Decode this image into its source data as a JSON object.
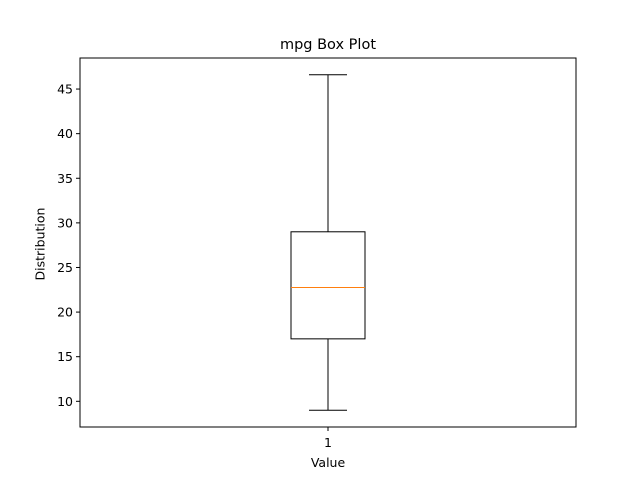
{
  "chart_data": {
    "type": "box",
    "title": "mpg Box Plot",
    "xlabel": "Value",
    "ylabel": "Distribution",
    "categories": [
      "1"
    ],
    "boxes": [
      {
        "category": "1",
        "whisker_low": 9.0,
        "q1": 17.0,
        "median": 22.75,
        "q3": 29.0,
        "whisker_high": 46.6
      }
    ],
    "ylim": [
      7.12,
      48.48
    ],
    "yticks": [
      10,
      15,
      20,
      25,
      30,
      35,
      40,
      45
    ],
    "grid": false,
    "colors": {
      "box": "#000000",
      "median": "#ff7f0e",
      "axis": "#000000"
    }
  }
}
